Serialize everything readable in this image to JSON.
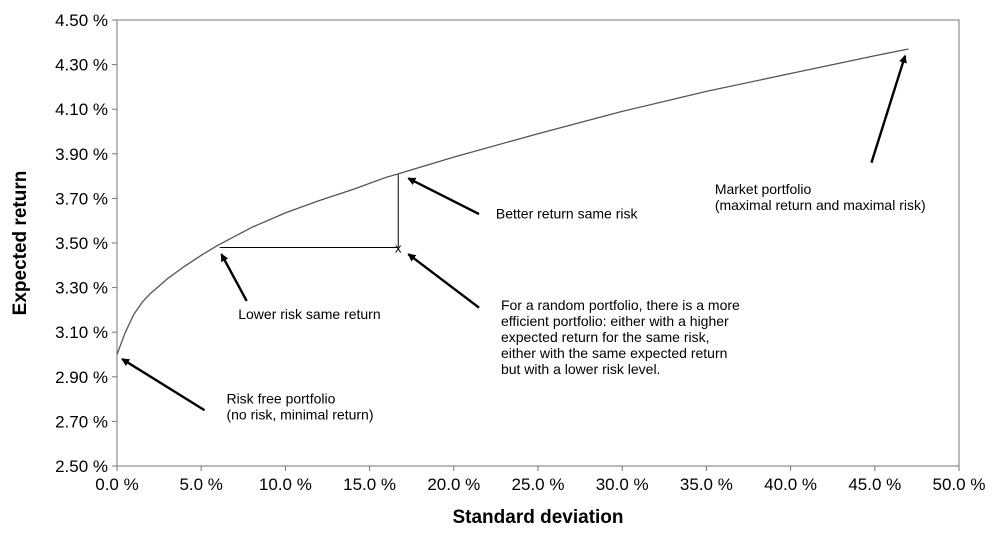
{
  "chart_data": {
    "type": "line",
    "xlabel": "Standard deviation",
    "ylabel": "Expected return",
    "xlim": [
      0.0,
      50.0
    ],
    "ylim": [
      2.5,
      4.5
    ],
    "x_ticks": [
      {
        "value": 0,
        "label": "0.0 %"
      },
      {
        "value": 5,
        "label": "5.0 %"
      },
      {
        "value": 10,
        "label": "10.0 %"
      },
      {
        "value": 15,
        "label": "15.0 %"
      },
      {
        "value": 20,
        "label": "20.0 %"
      },
      {
        "value": 25,
        "label": "25.0 %"
      },
      {
        "value": 30,
        "label": "30.0 %"
      },
      {
        "value": 35,
        "label": "35.0 %"
      },
      {
        "value": 40,
        "label": "40.0 %"
      },
      {
        "value": 45,
        "label": "45.0 %"
      },
      {
        "value": 50,
        "label": "50.0 %"
      }
    ],
    "y_ticks": [
      {
        "value": 2.5,
        "label": "2.50 %"
      },
      {
        "value": 2.7,
        "label": "2.70 %"
      },
      {
        "value": 2.9,
        "label": "2.90 %"
      },
      {
        "value": 3.1,
        "label": "3.10 %"
      },
      {
        "value": 3.3,
        "label": "3.30 %"
      },
      {
        "value": 3.5,
        "label": "3.50 %"
      },
      {
        "value": 3.7,
        "label": "3.70 %"
      },
      {
        "value": 3.9,
        "label": "3.90 %"
      },
      {
        "value": 4.1,
        "label": "4.10 %"
      },
      {
        "value": 4.3,
        "label": "4.30 %"
      },
      {
        "value": 4.5,
        "label": "4.50 %"
      }
    ],
    "series": [
      {
        "color": "#555555",
        "x": [
          0.0,
          0.5,
          1.0,
          1.5,
          2.0,
          3.0,
          4.0,
          5.0,
          6.0,
          8.0,
          10.0,
          12.0,
          14.0,
          16.0,
          16.7,
          18.0,
          20.0,
          25.0,
          30.0,
          35.0,
          40.0,
          45.0,
          47.0
        ],
        "y": [
          3.0,
          3.1,
          3.18,
          3.235,
          3.275,
          3.34,
          3.395,
          3.445,
          3.49,
          3.57,
          3.635,
          3.69,
          3.74,
          3.795,
          3.81,
          3.84,
          3.885,
          3.99,
          4.09,
          4.18,
          4.26,
          4.34,
          4.37
        ]
      }
    ],
    "grid": false,
    "marker": {
      "x": 16.7,
      "y": 3.48,
      "symbol": "x"
    },
    "guides": {
      "vertical": {
        "x": 16.7,
        "y_from": 3.48,
        "y_to": 3.81
      },
      "horizontal": {
        "y": 3.48,
        "x_from": 6.1,
        "x_to": 16.7
      }
    },
    "annotations": [
      {
        "name": "risk-free",
        "lines": [
          "Risk free portfolio",
          "(no risk, minimal return)"
        ],
        "text_x": 6.5,
        "text_y": 2.78,
        "arrow": {
          "from": [
            5.2,
            2.75
          ],
          "to": [
            0.3,
            2.98
          ]
        }
      },
      {
        "name": "lower-risk",
        "lines": [
          "Lower risk same return"
        ],
        "text_x": 7.2,
        "text_y": 3.16,
        "arrow": {
          "from": [
            7.7,
            3.24
          ],
          "to": [
            6.2,
            3.45
          ]
        }
      },
      {
        "name": "better-return",
        "lines": [
          "Better return same risk"
        ],
        "text_x": 22.5,
        "text_y": 3.61,
        "arrow": {
          "from": [
            21.5,
            3.63
          ],
          "to": [
            17.3,
            3.79
          ]
        }
      },
      {
        "name": "random-portfolio",
        "lines": [
          "For a random portfolio, there is a more",
          "efficient portfolio: either with a higher",
          "expected return for the same risk,",
          "either with the same expected return",
          "but with a lower risk level."
        ],
        "text_x": 22.8,
        "text_y": 3.2,
        "arrow": {
          "from": [
            21.5,
            3.21
          ],
          "to": [
            17.3,
            3.45
          ]
        }
      },
      {
        "name": "market-portfolio",
        "lines": [
          "Market portfolio",
          "(maximal return and maximal risk)"
        ],
        "text_x": 35.5,
        "text_y": 3.72,
        "arrow": {
          "from": [
            44.8,
            3.86
          ],
          "to": [
            46.8,
            4.34
          ]
        }
      }
    ]
  }
}
